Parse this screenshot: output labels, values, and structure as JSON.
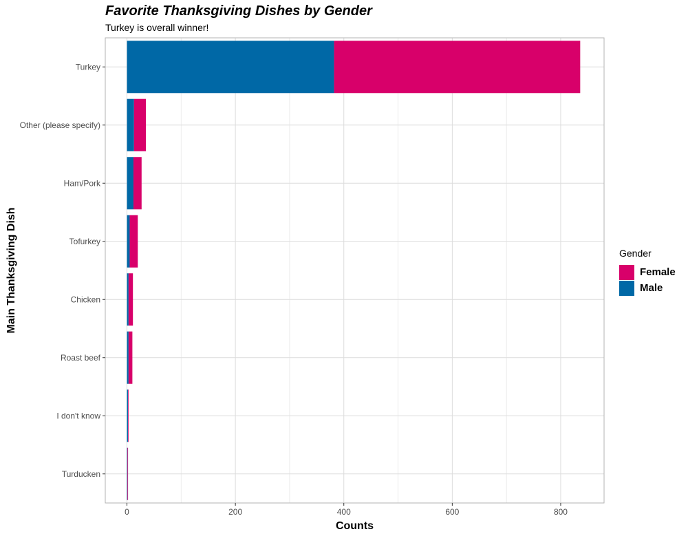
{
  "chart_data": {
    "type": "bar",
    "orientation": "horizontal",
    "stacked": true,
    "title": "Favorite Thanksgiving Dishes by Gender",
    "subtitle": "Turkey is overall winner!",
    "xlabel": "Counts",
    "ylabel": "Main Thanksgiving Dish",
    "categories": [
      "Turkey",
      "Other (please specify)",
      "Ham/Pork",
      "Tofurkey",
      "Chicken",
      "Roast beef",
      "I don't know",
      "Turducken"
    ],
    "series": [
      {
        "name": "Male",
        "color": "#0068a6",
        "values": [
          382,
          13,
          12,
          5,
          3,
          3,
          2,
          1
        ]
      },
      {
        "name": "Female",
        "color": "#d8006a",
        "values": [
          454,
          22,
          15,
          15,
          8,
          7,
          1,
          1
        ]
      }
    ],
    "xlim": [
      -40,
      880
    ],
    "xticks": [
      0,
      200,
      400,
      600,
      800
    ],
    "legend": {
      "title": "Gender",
      "position": "right",
      "order": [
        "Female",
        "Male"
      ]
    },
    "grid": true
  }
}
